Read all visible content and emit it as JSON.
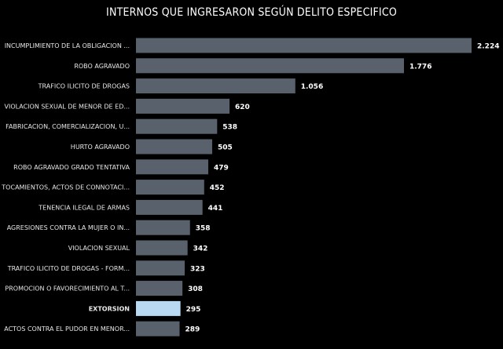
{
  "chart_data": {
    "type": "bar",
    "orientation": "horizontal",
    "title": "INTERNOS QUE INGRESARON SEGÚN DELITO ESPECIFICO",
    "categories": [
      "INCUMPLIMIENTO DE LA OBLIGACION ...",
      "ROBO AGRAVADO",
      "TRAFICO ILICITO DE DROGAS",
      "VIOLACION SEXUAL DE MENOR DE ED...",
      "FABRICACION, COMERCIALIZACION, U...",
      "HURTO AGRAVADO",
      "ROBO AGRAVADO GRADO TENTATIVA",
      "TOCAMIENTOS, ACTOS DE CONNOTACI...",
      "TENENCIA ILEGAL DE ARMAS",
      "AGRESIONES CONTRA LA MUJER O IN...",
      "VIOLACION SEXUAL",
      "TRAFICO ILICITO DE DROGAS - FORM...",
      "PROMOCION O FAVORECIMIENTO AL T...",
      "EXTORSION",
      "ACTOS CONTRA EL PUDOR EN MENOR..."
    ],
    "values": [
      2224,
      1776,
      1056,
      620,
      538,
      505,
      479,
      452,
      441,
      358,
      342,
      323,
      308,
      295,
      289
    ],
    "value_labels": [
      "2.224",
      "1.776",
      "1.056",
      "620",
      "538",
      "505",
      "479",
      "452",
      "441",
      "358",
      "342",
      "323",
      "308",
      "295",
      "289"
    ],
    "highlighted": "EXTORSION",
    "colors": {
      "background": "#000000",
      "bar": "#59626c",
      "highlight": "#b9d9f2",
      "text": "#ffffff"
    },
    "grid": false,
    "legend": "none"
  }
}
